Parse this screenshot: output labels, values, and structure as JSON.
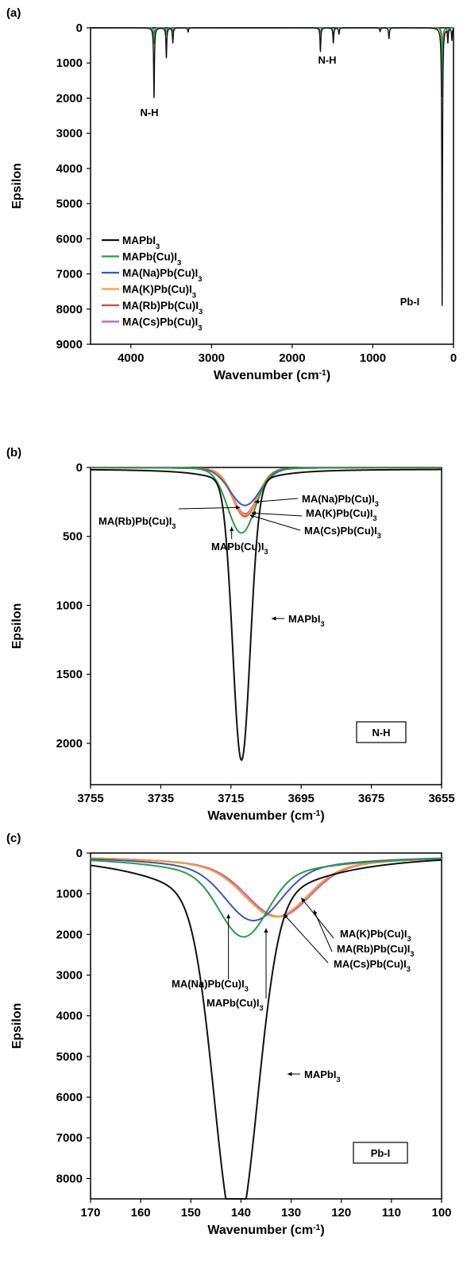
{
  "colors": {
    "MAPbI3": "#111111",
    "MAPb(Cu)I3": "#2e9a48",
    "MA(Na)Pb(Cu)I3": "#3f57b8",
    "MA(K)Pb(Cu)I3": "#f6a032",
    "MA(Rb)Pb(Cu)I3": "#ee3b36",
    "MA(Cs)Pb(Cu)I3": "#bf5fbf"
  },
  "chart_data": [
    {
      "panel": "(a)",
      "type": "line",
      "xlabel": "Wavenumber (cm-1)",
      "ylabel": "Epsilon",
      "xlim": [
        4500,
        0
      ],
      "ylim": [
        0,
        9000
      ],
      "x_ticks": [
        "4000",
        "3000",
        "2000",
        "1000",
        "0"
      ],
      "y_ticks": [
        "0",
        "1000",
        "2000",
        "3000",
        "4000",
        "5000",
        "6000",
        "7000",
        "8000",
        "9000"
      ],
      "legend": [
        "MAPbI3",
        "MAPb(Cu)I3",
        "MA(Na)Pb(Cu)I3",
        "MA(K)Pb(Cu)I3",
        "MA(Rb)Pb(Cu)I3",
        "MA(Cs)Pb(Cu)I3"
      ],
      "legend_position": "bottom-left",
      "annotations": [
        "N-H",
        "N-H",
        "Pb-I"
      ],
      "series": [
        {
          "name": "MAPbI3",
          "peaks": [
            [
              3713,
              2000
            ],
            [
              3560,
              850
            ],
            [
              3480,
              430
            ],
            [
              3290,
              120
            ],
            [
              1650,
              680
            ],
            [
              1490,
              430
            ],
            [
              1420,
              180
            ],
            [
              910,
              110
            ],
            [
              800,
              310
            ],
            [
              141,
              8100
            ],
            [
              70,
              400
            ],
            [
              20,
              350
            ]
          ]
        },
        {
          "name": "MAPb(Cu)I3",
          "peaks": [
            [
              3713,
              450
            ],
            [
              3560,
              200
            ],
            [
              3480,
              120
            ],
            [
              1650,
              180
            ],
            [
              1490,
              350
            ],
            [
              141,
              2000
            ],
            [
              70,
              300
            ]
          ]
        },
        {
          "name": "MA(Na)Pb(Cu)I3",
          "peaks": [
            [
              3713,
              250
            ],
            [
              3560,
              150
            ],
            [
              1490,
              300
            ],
            [
              138,
              1600
            ],
            [
              70,
              280
            ]
          ]
        },
        {
          "name": "MA(K)Pb(Cu)I3",
          "peaks": [
            [
              3713,
              320
            ],
            [
              3560,
              160
            ],
            [
              1490,
              280
            ],
            [
              134,
              1500
            ],
            [
              70,
              270
            ]
          ]
        },
        {
          "name": "MA(Rb)Pb(Cu)I3",
          "peaks": [
            [
              3713,
              330
            ],
            [
              3560,
              170
            ],
            [
              1490,
              350
            ],
            [
              134,
              1500
            ],
            [
              70,
              270
            ]
          ]
        },
        {
          "name": "MA(Cs)Pb(Cu)I3",
          "peaks": [
            [
              3713,
              310
            ],
            [
              3560,
              160
            ],
            [
              1490,
              300
            ],
            [
              133,
              1500
            ],
            [
              70,
              270
            ]
          ]
        }
      ]
    },
    {
      "panel": "(b)",
      "type": "line",
      "xlabel": "Wavenumber (cm-1)",
      "ylabel": "Epsilon",
      "xlim": [
        3755,
        3655
      ],
      "ylim": [
        0,
        2300
      ],
      "x_ticks": [
        "3755",
        "3735",
        "3715",
        "3695",
        "3675",
        "3655"
      ],
      "y_ticks": [
        "0",
        "500",
        "1000",
        "1500",
        "2000"
      ],
      "box_label": "N-H",
      "series": [
        {
          "name": "MAPbI3",
          "center": 3712,
          "height": 2000,
          "width": 3.5
        },
        {
          "name": "MAPb(Cu)I3",
          "center": 3712,
          "height": 450,
          "width": 5.5
        },
        {
          "name": "MA(Na)Pb(Cu)I3",
          "center": 3711,
          "height": 250,
          "width": 6
        },
        {
          "name": "MA(K)Pb(Cu)I3",
          "center": 3711,
          "height": 320,
          "width": 5
        },
        {
          "name": "MA(Rb)Pb(Cu)I3",
          "center": 3711,
          "height": 330,
          "width": 5
        },
        {
          "name": "MA(Cs)Pb(Cu)I3",
          "center": 3711,
          "height": 310,
          "width": 5
        }
      ],
      "annotations": [
        "MA(Na)Pb(Cu)I3",
        "MA(K)Pb(Cu)I3",
        "MA(Cs)Pb(Cu)I3",
        "MA(Rb)Pb(Cu)I3",
        "MAPb(Cu)I3",
        "MAPbI3"
      ]
    },
    {
      "panel": "(c)",
      "type": "line",
      "xlabel": "Wavenumber (cm-1)",
      "ylabel": "Epsilon",
      "xlim": [
        170,
        100
      ],
      "ylim": [
        0,
        8500
      ],
      "x_ticks": [
        "170",
        "160",
        "150",
        "140",
        "130",
        "120",
        "110",
        "100"
      ],
      "y_ticks": [
        "0",
        "1000",
        "2000",
        "3000",
        "4000",
        "5000",
        "6000",
        "7000",
        "8000"
      ],
      "box_label": "Pb-I",
      "series": [
        {
          "name": "MAPbI3",
          "center": 141,
          "height": 8100,
          "width": 6
        },
        {
          "name": "MAPb(Cu)I3",
          "center": 139.5,
          "height": 2000,
          "width": 6.5
        },
        {
          "name": "MA(Na)Pb(Cu)I3",
          "center": 137.5,
          "height": 1600,
          "width": 7.5
        },
        {
          "name": "MA(K)Pb(Cu)I3",
          "center": 133,
          "height": 1500,
          "width": 8.5
        },
        {
          "name": "MA(Rb)Pb(Cu)I3",
          "center": 133,
          "height": 1500,
          "width": 8.5
        },
        {
          "name": "MA(Cs)Pb(Cu)I3",
          "center": 132.5,
          "height": 1500,
          "width": 8.5
        }
      ],
      "annotations": [
        "MA(K)Pb(Cu)I3",
        "MA(Rb)Pb(Cu)I3",
        "MA(Cs)Pb(Cu)I3",
        "MA(Na)Pb(Cu)I3",
        "MAPb(Cu)I3",
        "MAPbI3"
      ]
    }
  ]
}
